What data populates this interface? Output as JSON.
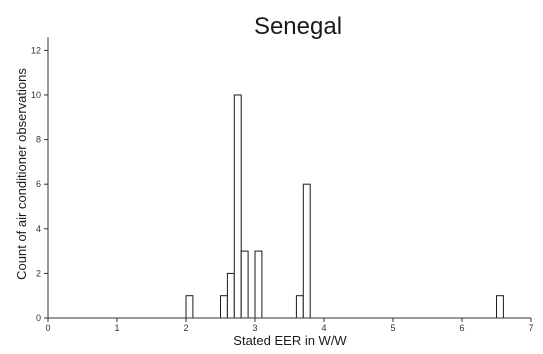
{
  "chart_data": {
    "type": "bar",
    "title": "Senegal",
    "xlabel": "Stated EER in W/W",
    "ylabel": "Count of air conditioner observations",
    "xlim": [
      0,
      7
    ],
    "ylim": [
      0,
      12.6
    ],
    "xticks": [
      "0",
      "1",
      "2",
      "3",
      "4",
      "5",
      "6",
      "7"
    ],
    "yticks": [
      "0",
      "2",
      "4",
      "6",
      "8",
      "10",
      "12"
    ],
    "bin_width": 0.1,
    "bins": [
      {
        "start": 2.0,
        "count": 1
      },
      {
        "start": 2.5,
        "count": 1
      },
      {
        "start": 2.6,
        "count": 2
      },
      {
        "start": 2.7,
        "count": 10
      },
      {
        "start": 2.8,
        "count": 3
      },
      {
        "start": 3.0,
        "count": 3
      },
      {
        "start": 3.6,
        "count": 1
      },
      {
        "start": 3.7,
        "count": 6
      },
      {
        "start": 6.5,
        "count": 1
      }
    ],
    "grid": false,
    "legend": "none"
  }
}
